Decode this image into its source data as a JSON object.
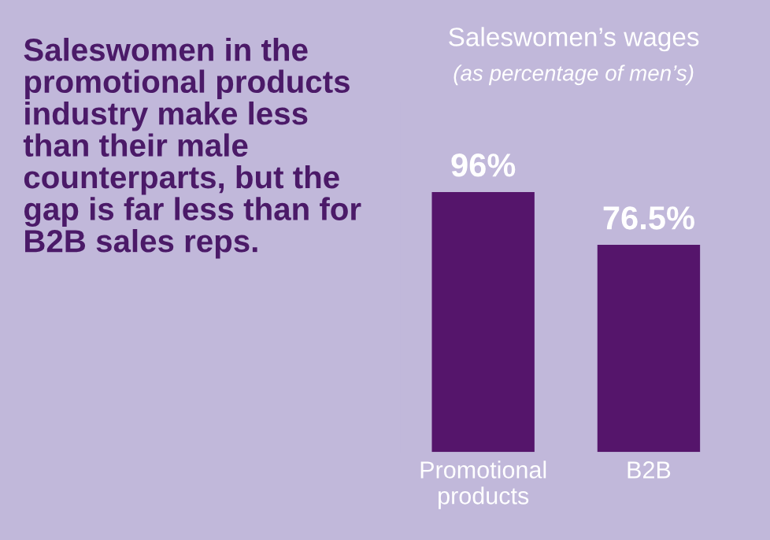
{
  "chart_data": {
    "type": "bar",
    "title": "Saleswomen in the\npromotional products\nindustry make less\nthan their male\ncounterparts, but the\ngap is far less than for\nB2B sales reps.",
    "subtitle": "Saleswomen’s wages",
    "annotations": [
      "(as percentage of men’s)"
    ],
    "categories": [
      "Promotional\nproducts",
      "B2B"
    ],
    "values": [
      96,
      76.5
    ],
    "value_labels": [
      "96%",
      "76.5%"
    ],
    "color": "#55156b",
    "grid": false
  }
}
